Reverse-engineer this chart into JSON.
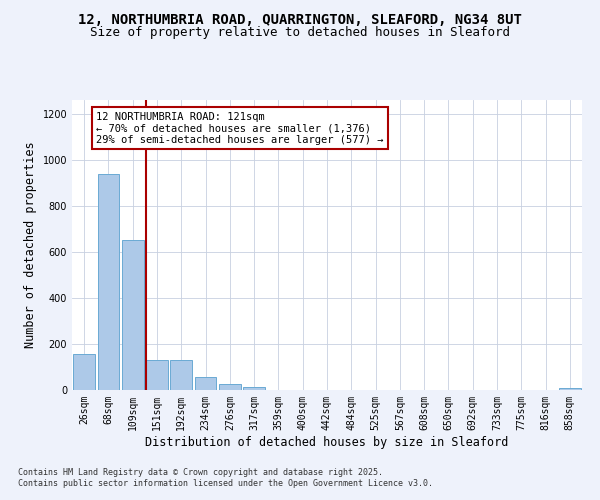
{
  "title_line1": "12, NORTHUMBRIA ROAD, QUARRINGTON, SLEAFORD, NG34 8UT",
  "title_line2": "Size of property relative to detached houses in Sleaford",
  "xlabel": "Distribution of detached houses by size in Sleaford",
  "ylabel": "Number of detached properties",
  "bin_labels": [
    "26sqm",
    "68sqm",
    "109sqm",
    "151sqm",
    "192sqm",
    "234sqm",
    "276sqm",
    "317sqm",
    "359sqm",
    "400sqm",
    "442sqm",
    "484sqm",
    "525sqm",
    "567sqm",
    "608sqm",
    "650sqm",
    "692sqm",
    "733sqm",
    "775sqm",
    "816sqm",
    "858sqm"
  ],
  "bar_heights": [
    155,
    940,
    650,
    130,
    130,
    58,
    28,
    14,
    0,
    0,
    0,
    0,
    0,
    0,
    0,
    0,
    0,
    0,
    0,
    0,
    8
  ],
  "bar_color": "#adc9e8",
  "bar_edgecolor": "#6aaad4",
  "vline_x": 2.55,
  "vline_color": "#aa0000",
  "annotation_text": "12 NORTHUMBRIA ROAD: 121sqm\n← 70% of detached houses are smaller (1,376)\n29% of semi-detached houses are larger (577) →",
  "annotation_box_color": "#ffffff",
  "annotation_box_edgecolor": "#aa0000",
  "ylim": [
    0,
    1260
  ],
  "yticks": [
    0,
    200,
    400,
    600,
    800,
    1000,
    1200
  ],
  "footer_line1": "Contains HM Land Registry data © Crown copyright and database right 2025.",
  "footer_line2": "Contains public sector information licensed under the Open Government Licence v3.0.",
  "background_color": "#eef2fb",
  "plot_bg_color": "#ffffff",
  "title_fontsize": 10,
  "subtitle_fontsize": 9,
  "tick_fontsize": 7,
  "label_fontsize": 8.5,
  "annotation_fontsize": 7.5,
  "footer_fontsize": 6
}
